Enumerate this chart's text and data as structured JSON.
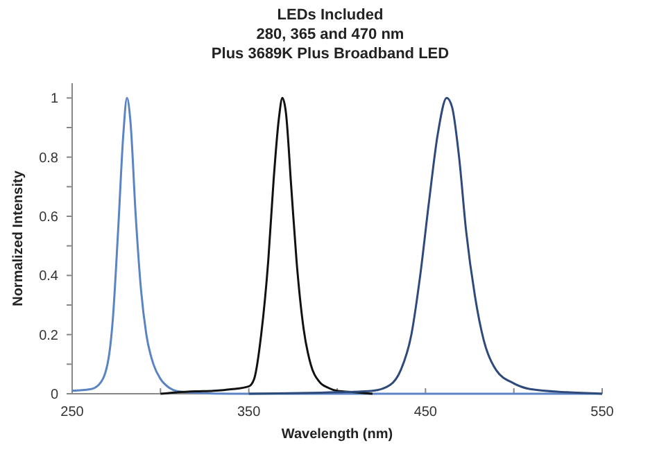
{
  "chart_data": {
    "type": "line",
    "title": "LEDs Included\n280, 365 and 470 nm\nPlus 3689K Plus Broadband LED",
    "xlabel": "Wavelength (nm)",
    "ylabel": "Normalized Intensity",
    "xlim": [
      250,
      550
    ],
    "ylim": [
      0,
      1.05
    ],
    "xticks": [
      250,
      {
        "value": 300,
        "label": null
      },
      350,
      {
        "value": 400,
        "label": null
      },
      450,
      {
        "value": 500,
        "label": null
      },
      550
    ],
    "yticks": [
      0,
      {
        "value": 0.1,
        "label": null
      },
      0.2,
      {
        "value": 0.3,
        "label": null
      },
      0.4,
      {
        "value": 0.5,
        "label": null
      },
      0.6,
      {
        "value": 0.7,
        "label": null
      },
      0.8,
      {
        "value": 0.9,
        "label": null
      },
      1
    ],
    "marker": "none",
    "line_style": "solid",
    "series": [
      {
        "color": "#5b84c4",
        "x": [
          250,
          260,
          265,
          270,
          273,
          276,
          279,
          281,
          283,
          286,
          289,
          292,
          296,
          300,
          305,
          310,
          320,
          340,
          400,
          550
        ],
        "values": [
          0.01,
          0.015,
          0.03,
          0.1,
          0.25,
          0.55,
          0.88,
          1,
          0.92,
          0.6,
          0.35,
          0.2,
          0.1,
          0.05,
          0.02,
          0.008,
          0.003,
          0,
          0,
          0
        ]
      },
      {
        "color": "#111111",
        "x": [
          300,
          310,
          320,
          330,
          340,
          350,
          353,
          357,
          361,
          364,
          367,
          369,
          371,
          374,
          377,
          381,
          385,
          390,
          395,
          400,
          410,
          420
        ],
        "values": [
          0,
          0.005,
          0.008,
          0.01,
          0.015,
          0.025,
          0.05,
          0.2,
          0.45,
          0.72,
          0.93,
          1,
          0.95,
          0.7,
          0.45,
          0.22,
          0.1,
          0.04,
          0.02,
          0.01,
          0.005,
          0
        ]
      },
      {
        "color": "#2e4a7a",
        "x": [
          350,
          400,
          420,
          430,
          436,
          442,
          447,
          452,
          457,
          462,
          465,
          469,
          473,
          478,
          483,
          490,
          500,
          510,
          530,
          550
        ],
        "values": [
          0,
          0.005,
          0.01,
          0.03,
          0.08,
          0.2,
          0.4,
          0.65,
          0.88,
          1,
          0.97,
          0.8,
          0.55,
          0.33,
          0.18,
          0.08,
          0.035,
          0.015,
          0.005,
          0
        ]
      }
    ]
  }
}
